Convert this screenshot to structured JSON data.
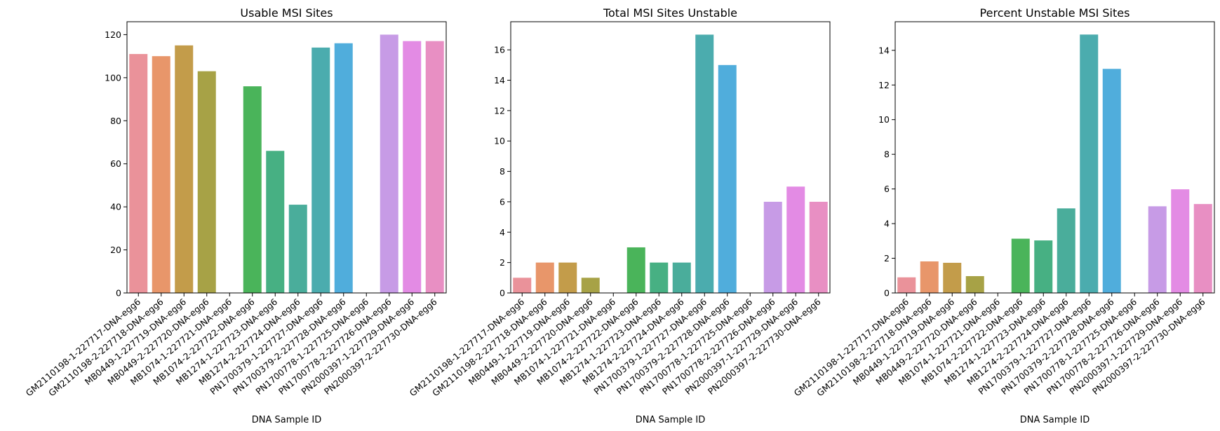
{
  "chart_data": [
    {
      "type": "bar",
      "title": "Usable MSI Sites",
      "xlabel": "DNA Sample ID",
      "ylabel": "",
      "ylim": [
        0,
        126
      ],
      "yticks": [
        0,
        20,
        40,
        60,
        80,
        100,
        120
      ],
      "categories": [
        "GM2110198-1-227717-DNA-egg6",
        "GM2110198-2-227718-DNA-egg6",
        "MB0449-1-227719-DNA-egg6",
        "MB0449-2-227720-DNA-egg6",
        "MB1074-1-227721-DNA-egg6",
        "MB1074-2-227722-DNA-egg6",
        "MB1274-1-227723-DNA-egg6",
        "MB1274-2-227724-DNA-egg6",
        "PN1700379-1-227727-DNA-egg6",
        "PN1700379-2-227728-DNA-egg6",
        "PN1700778-1-227725-DNA-egg6",
        "PN1700778-2-227726-DNA-egg6",
        "PN2000397-1-227729-DNA-egg6",
        "PN2000397-2-227730-DNA-egg6"
      ],
      "values": [
        111,
        110,
        115,
        103,
        0,
        96,
        66,
        41,
        114,
        116,
        0,
        120,
        117,
        117
      ],
      "colors": [
        "#ea929a",
        "#e8966a",
        "#c39c4a",
        "#a7a246",
        "#9aa842",
        "#4ab45a",
        "#47b083",
        "#4aad9b",
        "#4bacae",
        "#50addc",
        "#8fa6e6",
        "#c79be6",
        "#e38be4",
        "#e88fc3"
      ]
    },
    {
      "type": "bar",
      "title": "Total MSI Sites Unstable",
      "xlabel": "DNA Sample ID",
      "ylabel": "",
      "ylim": [
        0,
        17.85
      ],
      "yticks": [
        0,
        2,
        4,
        6,
        8,
        10,
        12,
        14,
        16
      ],
      "categories": [
        "GM2110198-1-227717-DNA-egg6",
        "GM2110198-2-227718-DNA-egg6",
        "MB0449-1-227719-DNA-egg6",
        "MB0449-2-227720-DNA-egg6",
        "MB1074-1-227721-DNA-egg6",
        "MB1074-2-227722-DNA-egg6",
        "MB1274-1-227723-DNA-egg6",
        "MB1274-2-227724-DNA-egg6",
        "PN1700379-1-227727-DNA-egg6",
        "PN1700379-2-227728-DNA-egg6",
        "PN1700778-1-227725-DNA-egg6",
        "PN1700778-2-227726-DNA-egg6",
        "PN2000397-1-227729-DNA-egg6",
        "PN2000397-2-227730-DNA-egg6"
      ],
      "values": [
        1,
        2,
        2,
        1,
        0,
        3,
        2,
        2,
        17,
        15,
        0,
        6,
        7,
        6
      ],
      "colors": [
        "#ea929a",
        "#e8966a",
        "#c39c4a",
        "#a7a246",
        "#9aa842",
        "#4ab45a",
        "#47b083",
        "#4aad9b",
        "#4bacae",
        "#50addc",
        "#8fa6e6",
        "#c79be6",
        "#e38be4",
        "#e88fc3"
      ]
    },
    {
      "type": "bar",
      "title": "Percent Unstable MSI Sites",
      "xlabel": "DNA Sample ID",
      "ylabel": "",
      "ylim": [
        0,
        15.65
      ],
      "yticks": [
        0,
        2,
        4,
        6,
        8,
        10,
        12,
        14
      ],
      "categories": [
        "GM2110198-1-227717-DNA-egg6",
        "GM2110198-2-227718-DNA-egg6",
        "MB0449-1-227719-DNA-egg6",
        "MB0449-2-227720-DNA-egg6",
        "MB1074-1-227721-DNA-egg6",
        "MB1074-2-227722-DNA-egg6",
        "MB1274-1-227723-DNA-egg6",
        "MB1274-2-227724-DNA-egg6",
        "PN1700379-1-227727-DNA-egg6",
        "PN1700379-2-227728-DNA-egg6",
        "PN1700778-1-227725-DNA-egg6",
        "PN1700778-2-227726-DNA-egg6",
        "PN2000397-1-227729-DNA-egg6",
        "PN2000397-2-227730-DNA-egg6"
      ],
      "values": [
        0.9,
        1.82,
        1.74,
        0.97,
        0,
        3.13,
        3.03,
        4.88,
        14.91,
        12.93,
        0,
        5.0,
        5.98,
        5.13
      ],
      "colors": [
        "#ea929a",
        "#e8966a",
        "#c39c4a",
        "#a7a246",
        "#9aa842",
        "#4ab45a",
        "#47b083",
        "#4aad9b",
        "#4bacae",
        "#50addc",
        "#8fa6e6",
        "#c79be6",
        "#e38be4",
        "#e88fc3"
      ]
    }
  ]
}
